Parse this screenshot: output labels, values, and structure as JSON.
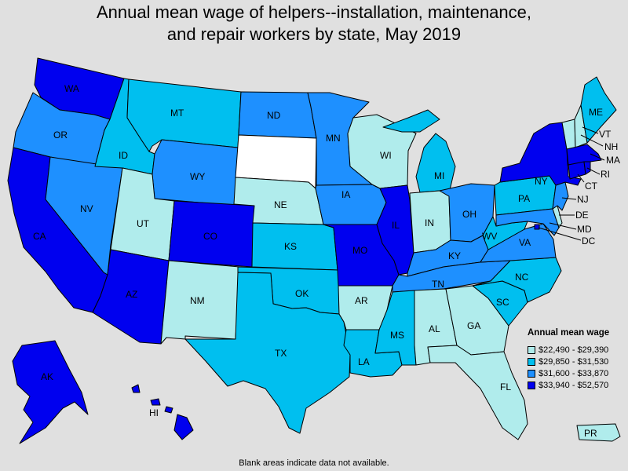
{
  "title": {
    "line1": "Annual mean wage of helpers--installation, maintenance,",
    "line2": "and repair workers by state, May 2019"
  },
  "legend": {
    "title": "Annual mean wage",
    "bins": [
      {
        "range": "$22,490 - $29,390",
        "color": "#b0ecec"
      },
      {
        "range": "$29,850 - $31,530",
        "color": "#00bfef"
      },
      {
        "range": "$31,600 - $33,870",
        "color": "#1e90ff"
      },
      {
        "range": "$33,940 - $52,570",
        "color": "#0000ef"
      }
    ]
  },
  "no_data_color": "#ffffff",
  "footnote": "Blank areas indicate data not available.",
  "states": {
    "WA": 3,
    "OR": 2,
    "CA": 3,
    "NV": 2,
    "ID": 1,
    "MT": 1,
    "WY": 2,
    "UT": 0,
    "CO": 3,
    "AZ": 3,
    "NM": 0,
    "ND": 2,
    "SD": -1,
    "NE": 0,
    "KS": 1,
    "OK": 1,
    "TX": 1,
    "MN": 2,
    "IA": 2,
    "MO": 3,
    "AR": 0,
    "LA": 1,
    "WI": 0,
    "IL": 3,
    "MI": 1,
    "IN": 0,
    "OH": 2,
    "KY": 2,
    "TN": 2,
    "MS": 1,
    "AL": 0,
    "GA": 0,
    "FL": 0,
    "SC": 1,
    "NC": 1,
    "VA": 2,
    "WV": 1,
    "PA": 1,
    "NY": 3,
    "ME": 1,
    "NH": 0,
    "VT": 0,
    "MA": 3,
    "RI": 3,
    "CT": 3,
    "NJ": 2,
    "DE": 0,
    "MD": 2,
    "DC": 3,
    "AK": 3,
    "HI": 3,
    "PR": 0
  },
  "labels": {
    "WA": "WA",
    "OR": "OR",
    "CA": "CA",
    "NV": "NV",
    "ID": "ID",
    "MT": "MT",
    "WY": "WY",
    "UT": "UT",
    "CO": "CO",
    "AZ": "AZ",
    "NM": "NM",
    "ND": "ND",
    "NE": "NE",
    "KS": "KS",
    "OK": "OK",
    "TX": "TX",
    "MN": "MN",
    "IA": "IA",
    "MO": "MO",
    "AR": "AR",
    "LA": "LA",
    "WI": "WI",
    "IL": "IL",
    "MI": "MI",
    "IN": "IN",
    "OH": "OH",
    "KY": "KY",
    "TN": "TN",
    "MS": "MS",
    "AL": "AL",
    "GA": "GA",
    "FL": "FL",
    "SC": "SC",
    "NC": "NC",
    "VA": "VA",
    "WV": "WV",
    "PA": "PA",
    "NY": "NY",
    "ME": "ME",
    "NH": "NH",
    "VT": "VT",
    "MA": "MA",
    "RI": "RI",
    "CT": "CT",
    "NJ": "NJ",
    "DE": "DE",
    "MD": "MD",
    "DC": "DC",
    "AK": "AK",
    "HI": "HI",
    "PR": "PR"
  }
}
